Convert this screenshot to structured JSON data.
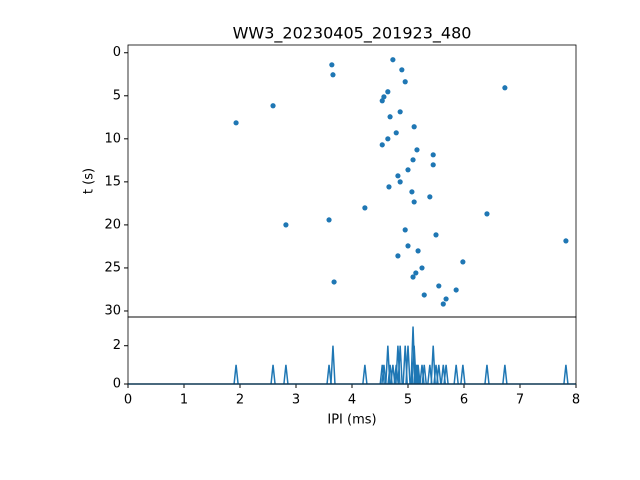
{
  "chart_data": [
    {
      "type": "scatter",
      "title": "WW3_20230405_201923_480",
      "ylabel": "t (s)",
      "color": "#1f77b4",
      "x": [
        4.73,
        3.64,
        4.89,
        3.66,
        4.95,
        6.73,
        4.64,
        4.57,
        4.54,
        2.59,
        4.86,
        4.68,
        1.93,
        5.11,
        4.79,
        4.64,
        4.54,
        5.16,
        5.45,
        5.09,
        5.45,
        5.0,
        4.82,
        4.86,
        4.66,
        5.07,
        5.39,
        5.11,
        4.23,
        6.41,
        3.59,
        2.82,
        4.95,
        5.5,
        7.82,
        5.0,
        5.18,
        4.82,
        5.98,
        5.25,
        5.14,
        5.09,
        3.68,
        5.55,
        5.86,
        5.29,
        5.68,
        5.63
      ],
      "values": [
        0.81,
        1.4,
        1.98,
        2.56,
        3.37,
        4.07,
        4.53,
        5.12,
        5.58,
        6.16,
        6.86,
        7.44,
        8.14,
        8.6,
        9.3,
        10.0,
        10.7,
        11.28,
        11.86,
        12.44,
        13.02,
        13.6,
        14.3,
        15.0,
        15.58,
        16.16,
        16.74,
        17.33,
        18.02,
        18.72,
        19.42,
        20.0,
        20.58,
        21.16,
        21.86,
        22.44,
        23.02,
        23.6,
        24.3,
        25.0,
        25.58,
        26.05,
        26.63,
        27.09,
        27.56,
        28.14,
        28.6,
        29.19
      ],
      "xlim": [
        0,
        8
      ],
      "ylim": [
        30.7,
        -0.9
      ],
      "yticks": [
        0,
        5,
        10,
        15,
        20,
        25,
        30
      ]
    },
    {
      "type": "line",
      "xlabel": "IPI (ms)",
      "color": "#1f77b4",
      "x": [
        1.93,
        2.59,
        2.82,
        3.59,
        3.66,
        4.23,
        4.54,
        4.57,
        4.64,
        4.68,
        4.73,
        4.79,
        4.82,
        4.86,
        4.95,
        5.0,
        5.09,
        5.11,
        5.14,
        5.16,
        5.18,
        5.25,
        5.29,
        5.39,
        5.45,
        5.5,
        5.55,
        5.63,
        5.68,
        5.86,
        5.98,
        6.41,
        6.73,
        7.82
      ],
      "values": [
        1,
        1,
        1,
        1,
        2,
        1,
        1,
        1,
        2,
        1,
        1,
        1,
        2,
        2,
        2,
        2,
        3,
        2,
        1,
        1,
        1,
        1,
        1,
        1,
        2,
        1,
        1,
        1,
        1,
        1,
        1,
        1,
        1,
        1
      ],
      "xlim": [
        0,
        8
      ],
      "xticks": [
        0,
        1,
        2,
        3,
        4,
        5,
        6,
        7,
        8
      ],
      "ylim": [
        0,
        3.5
      ],
      "yticks": [
        0,
        2
      ]
    }
  ]
}
